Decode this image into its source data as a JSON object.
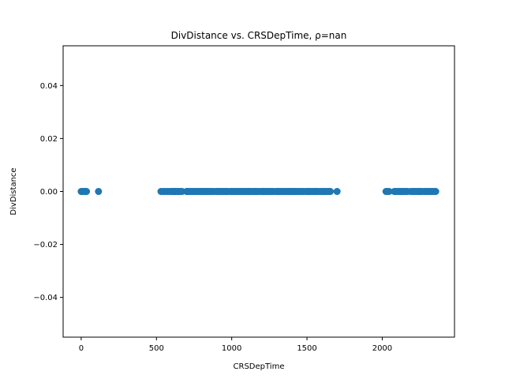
{
  "chart_data": {
    "type": "scatter",
    "title": "DivDistance vs. CRSDepTime, ρ=nan",
    "xlabel": "CRSDepTime",
    "ylabel": "DivDistance",
    "xlim": [
      -120,
      2480
    ],
    "ylim": [
      -0.055,
      0.055
    ],
    "xticks": [
      0,
      500,
      1000,
      1500,
      2000
    ],
    "xtick_labels": [
      "0",
      "500",
      "1000",
      "1500",
      "2000"
    ],
    "yticks": [
      -0.04,
      -0.02,
      0.0,
      0.02,
      0.04
    ],
    "ytick_labels": [
      "−0.04",
      "−0.02",
      "0.00",
      "0.02",
      "0.04"
    ],
    "grid": false,
    "marker_color": "#1f77b4",
    "series": [
      {
        "x": [
          0,
          10,
          20,
          30,
          35,
          115,
          530,
          545,
          555,
          570,
          580,
          595,
          600,
          610,
          615,
          620,
          625,
          630,
          640,
          645,
          650,
          660,
          670,
          700,
          705,
          715,
          720,
          730,
          740,
          750,
          760,
          770,
          780,
          790,
          800,
          810,
          815,
          820,
          830,
          840,
          850,
          860,
          870,
          880,
          895,
          900,
          910,
          915,
          925,
          935,
          945,
          955,
          960,
          970,
          980,
          995,
          1000,
          1005,
          1015,
          1025,
          1035,
          1045,
          1055,
          1065,
          1075,
          1085,
          1095,
          1100,
          1110,
          1115,
          1125,
          1135,
          1145,
          1155,
          1160,
          1170,
          1180,
          1195,
          1200,
          1210,
          1215,
          1225,
          1235,
          1245,
          1255,
          1260,
          1270,
          1280,
          1295,
          1300,
          1310,
          1315,
          1325,
          1335,
          1345,
          1355,
          1365,
          1375,
          1385,
          1395,
          1400,
          1410,
          1415,
          1425,
          1435,
          1445,
          1455,
          1470,
          1480,
          1495,
          1500,
          1510,
          1515,
          1525,
          1535,
          1545,
          1555,
          1560,
          1570,
          1580,
          1595,
          1600,
          1610,
          1620,
          1630,
          1640,
          1650,
          1655,
          1700,
          2025,
          2035,
          2045,
          2080,
          2090,
          2100,
          2110,
          2120,
          2130,
          2140,
          2150,
          2160,
          2170,
          2190,
          2200,
          2210,
          2220,
          2230,
          2240,
          2250,
          2260,
          2265,
          2280,
          2290,
          2300,
          2310,
          2320,
          2330,
          2340,
          2350,
          2355
        ],
        "y": [
          0,
          0,
          0,
          0,
          0,
          0,
          0,
          0,
          0,
          0,
          0,
          0,
          0,
          0,
          0,
          0,
          0,
          0,
          0,
          0,
          0,
          0,
          0,
          0,
          0,
          0,
          0,
          0,
          0,
          0,
          0,
          0,
          0,
          0,
          0,
          0,
          0,
          0,
          0,
          0,
          0,
          0,
          0,
          0,
          0,
          0,
          0,
          0,
          0,
          0,
          0,
          0,
          0,
          0,
          0,
          0,
          0,
          0,
          0,
          0,
          0,
          0,
          0,
          0,
          0,
          0,
          0,
          0,
          0,
          0,
          0,
          0,
          0,
          0,
          0,
          0,
          0,
          0,
          0,
          0,
          0,
          0,
          0,
          0,
          0,
          0,
          0,
          0,
          0,
          0,
          0,
          0,
          0,
          0,
          0,
          0,
          0,
          0,
          0,
          0,
          0,
          0,
          0,
          0,
          0,
          0,
          0,
          0,
          0,
          0,
          0,
          0,
          0,
          0,
          0,
          0,
          0,
          0,
          0,
          0,
          0,
          0,
          0,
          0,
          0,
          0,
          0,
          0,
          0,
          0,
          0,
          0,
          0,
          0,
          0,
          0,
          0,
          0,
          0,
          0,
          0,
          0,
          0,
          0,
          0,
          0,
          0,
          0,
          0,
          0,
          0,
          0,
          0,
          0,
          0,
          0,
          0,
          0,
          0,
          0
        ]
      }
    ]
  }
}
